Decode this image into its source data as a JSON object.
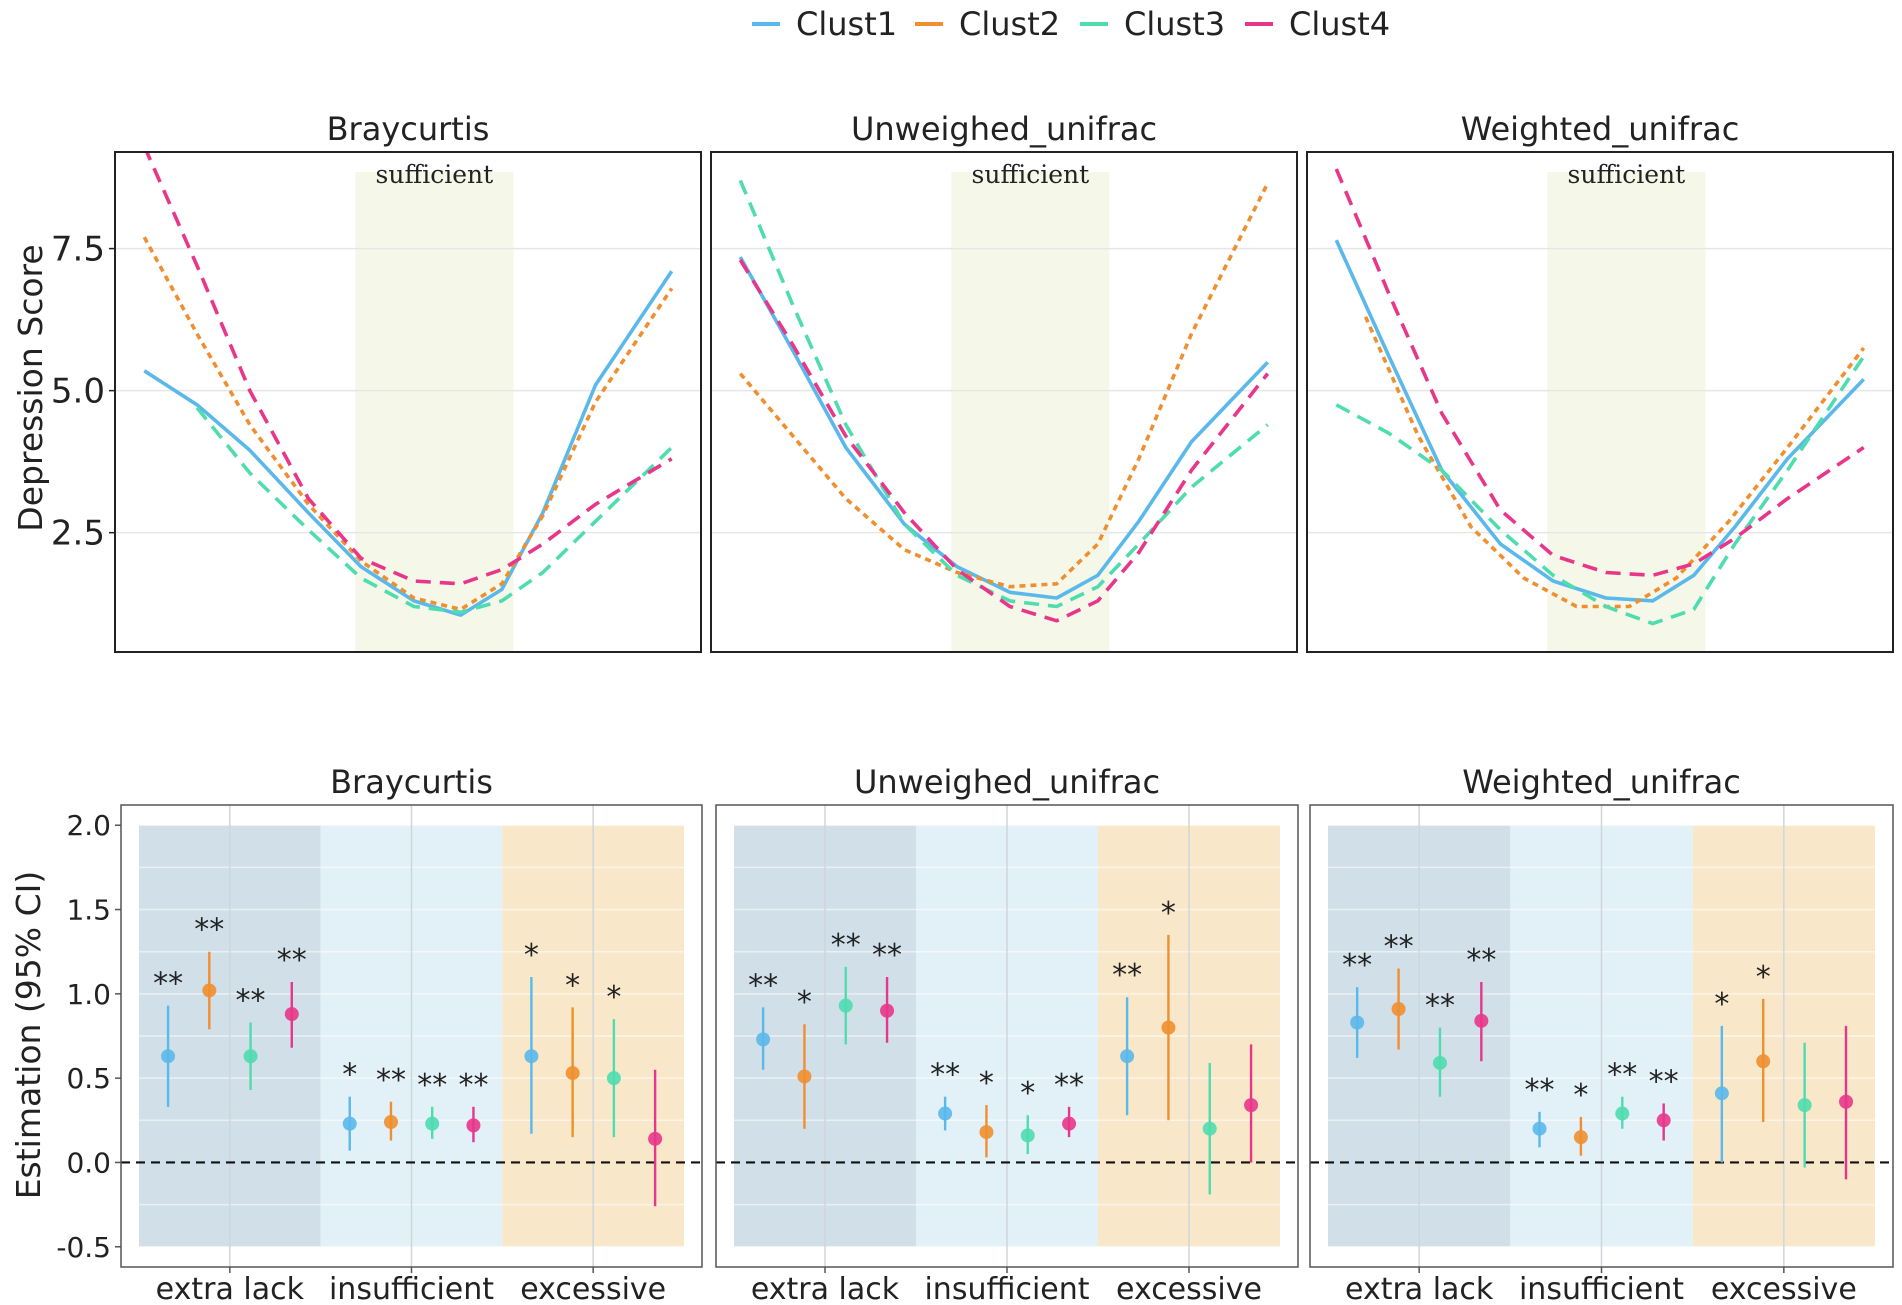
{
  "legend": {
    "items": [
      {
        "name": "Clust1",
        "color": "#5bb8ea",
        "dash": "solid"
      },
      {
        "name": "Clust2",
        "color": "#ef8f2f",
        "dash": "dot"
      },
      {
        "name": "Clust3",
        "color": "#4fdcae",
        "dash": "dash"
      },
      {
        "name": "Clust4",
        "color": "#e8368a",
        "dash": "dash"
      }
    ]
  },
  "top_row": {
    "ylabel": "Depression Score",
    "band_label": "sufficient",
    "band_color": "#f5f8e8"
  },
  "bottom_row": {
    "ylabel": "Estimation (95% CI)",
    "group_colors": [
      "#d0dfe8",
      "#e2f0f8",
      "#f8e8c9"
    ]
  },
  "chart_data": [
    {
      "type": "line",
      "title": "Braycurtis",
      "xlim": [
        0,
        1
      ],
      "ylim": [
        0.4,
        9.2
      ],
      "yticks": [
        2.5,
        5.0,
        7.5
      ],
      "band": [
        0.41,
        0.68
      ],
      "band_label": "sufficient",
      "ylabel": "Depression Score",
      "series": [
        {
          "name": "Clust1",
          "points": [
            [
              0.05,
              5.35
            ],
            [
              0.14,
              4.75
            ],
            [
              0.23,
              3.95
            ],
            [
              0.33,
              2.85
            ],
            [
              0.42,
              1.9
            ],
            [
              0.51,
              1.3
            ],
            [
              0.59,
              1.05
            ],
            [
              0.66,
              1.5
            ],
            [
              0.73,
              2.85
            ],
            [
              0.82,
              5.1
            ],
            [
              0.95,
              7.1
            ]
          ]
        },
        {
          "name": "Clust2",
          "points": [
            [
              0.05,
              7.7
            ],
            [
              0.14,
              6.0
            ],
            [
              0.23,
              4.4
            ],
            [
              0.33,
              3.0
            ],
            [
              0.42,
              2.0
            ],
            [
              0.51,
              1.35
            ],
            [
              0.59,
              1.15
            ],
            [
              0.66,
              1.6
            ],
            [
              0.73,
              2.8
            ],
            [
              0.82,
              4.8
            ],
            [
              0.95,
              6.8
            ]
          ]
        },
        {
          "name": "Clust3",
          "points": [
            [
              0.14,
              4.7
            ],
            [
              0.23,
              3.55
            ],
            [
              0.33,
              2.55
            ],
            [
              0.42,
              1.7
            ],
            [
              0.51,
              1.2
            ],
            [
              0.59,
              1.1
            ],
            [
              0.66,
              1.3
            ],
            [
              0.73,
              1.8
            ],
            [
              0.82,
              2.7
            ],
            [
              0.95,
              4.0
            ]
          ]
        },
        {
          "name": "Clust4",
          "points": [
            [
              0.05,
              9.3
            ],
            [
              0.14,
              7.2
            ],
            [
              0.23,
              5.0
            ],
            [
              0.33,
              3.1
            ],
            [
              0.42,
              2.05
            ],
            [
              0.51,
              1.65
            ],
            [
              0.59,
              1.6
            ],
            [
              0.66,
              1.85
            ],
            [
              0.73,
              2.3
            ],
            [
              0.82,
              3.0
            ],
            [
              0.95,
              3.8
            ]
          ]
        }
      ]
    },
    {
      "type": "line",
      "title": "Unweighed_unifrac",
      "xlim": [
        0,
        1
      ],
      "ylim": [
        0.4,
        9.2
      ],
      "yticks": [
        2.5,
        5.0,
        7.5
      ],
      "band": [
        0.41,
        0.68
      ],
      "band_label": "sufficient",
      "series": [
        {
          "name": "Clust1",
          "points": [
            [
              0.05,
              7.35
            ],
            [
              0.14,
              5.7
            ],
            [
              0.23,
              4.0
            ],
            [
              0.33,
              2.65
            ],
            [
              0.42,
              1.9
            ],
            [
              0.51,
              1.45
            ],
            [
              0.59,
              1.35
            ],
            [
              0.66,
              1.75
            ],
            [
              0.73,
              2.7
            ],
            [
              0.82,
              4.1
            ],
            [
              0.95,
              5.5
            ]
          ]
        },
        {
          "name": "Clust2",
          "points": [
            [
              0.05,
              5.3
            ],
            [
              0.14,
              4.2
            ],
            [
              0.23,
              3.1
            ],
            [
              0.33,
              2.2
            ],
            [
              0.42,
              1.8
            ],
            [
              0.51,
              1.55
            ],
            [
              0.59,
              1.6
            ],
            [
              0.66,
              2.3
            ],
            [
              0.73,
              3.8
            ],
            [
              0.82,
              6.0
            ],
            [
              0.95,
              8.65
            ]
          ]
        },
        {
          "name": "Clust3",
          "points": [
            [
              0.05,
              8.7
            ],
            [
              0.14,
              6.5
            ],
            [
              0.23,
              4.4
            ],
            [
              0.33,
              2.65
            ],
            [
              0.42,
              1.75
            ],
            [
              0.51,
              1.3
            ],
            [
              0.59,
              1.2
            ],
            [
              0.66,
              1.55
            ],
            [
              0.73,
              2.3
            ],
            [
              0.82,
              3.3
            ],
            [
              0.95,
              4.4
            ]
          ]
        },
        {
          "name": "Clust4",
          "points": [
            [
              0.05,
              7.3
            ],
            [
              0.14,
              5.8
            ],
            [
              0.23,
              4.2
            ],
            [
              0.33,
              2.85
            ],
            [
              0.42,
              1.85
            ],
            [
              0.51,
              1.2
            ],
            [
              0.59,
              0.95
            ],
            [
              0.66,
              1.3
            ],
            [
              0.73,
              2.15
            ],
            [
              0.82,
              3.6
            ],
            [
              0.95,
              5.3
            ]
          ]
        }
      ]
    },
    {
      "type": "line",
      "title": "Weighted_unifrac",
      "xlim": [
        0,
        1
      ],
      "ylim": [
        0.4,
        9.2
      ],
      "yticks": [
        2.5,
        5.0,
        7.5
      ],
      "band": [
        0.41,
        0.68
      ],
      "band_label": "sufficient",
      "series": [
        {
          "name": "Clust1",
          "points": [
            [
              0.05,
              7.65
            ],
            [
              0.14,
              5.6
            ],
            [
              0.23,
              3.6
            ],
            [
              0.33,
              2.3
            ],
            [
              0.42,
              1.65
            ],
            [
              0.51,
              1.35
            ],
            [
              0.59,
              1.3
            ],
            [
              0.66,
              1.75
            ],
            [
              0.73,
              2.6
            ],
            [
              0.82,
              3.8
            ],
            [
              0.95,
              5.2
            ]
          ]
        },
        {
          "name": "Clust2",
          "points": [
            [
              0.1,
              6.3
            ],
            [
              0.19,
              4.2
            ],
            [
              0.28,
              2.6
            ],
            [
              0.37,
              1.7
            ],
            [
              0.46,
              1.2
            ],
            [
              0.55,
              1.2
            ],
            [
              0.63,
              1.7
            ],
            [
              0.72,
              2.7
            ],
            [
              0.82,
              4.0
            ],
            [
              0.95,
              5.75
            ]
          ]
        },
        {
          "name": "Clust3",
          "points": [
            [
              0.05,
              4.75
            ],
            [
              0.14,
              4.25
            ],
            [
              0.23,
              3.6
            ],
            [
              0.33,
              2.55
            ],
            [
              0.42,
              1.75
            ],
            [
              0.51,
              1.2
            ],
            [
              0.59,
              0.9
            ],
            [
              0.66,
              1.15
            ],
            [
              0.73,
              2.3
            ],
            [
              0.82,
              3.6
            ],
            [
              0.95,
              5.6
            ]
          ]
        },
        {
          "name": "Clust4",
          "points": [
            [
              0.05,
              8.9
            ],
            [
              0.14,
              6.7
            ],
            [
              0.23,
              4.6
            ],
            [
              0.33,
              2.9
            ],
            [
              0.42,
              2.1
            ],
            [
              0.51,
              1.8
            ],
            [
              0.59,
              1.75
            ],
            [
              0.66,
              1.95
            ],
            [
              0.73,
              2.4
            ],
            [
              0.82,
              3.1
            ],
            [
              0.95,
              4.0
            ]
          ]
        }
      ]
    },
    {
      "type": "scatter",
      "subtype": "point-range",
      "title": "Braycurtis",
      "ylabel": "Estimation (95% CI)",
      "ylim": [
        -0.62,
        2.12
      ],
      "yticks": [
        2.0,
        1.5,
        1.0,
        0.5,
        0.0,
        -0.5
      ],
      "ytick_labels": [
        "2.0",
        "1.5",
        "1.0",
        "0.5",
        "0.0",
        "-0.5"
      ],
      "reference_line": 0,
      "groups": [
        "extra lack",
        "insufficient",
        "excessive"
      ],
      "points": [
        {
          "group": 0,
          "cluster": "Clust1",
          "est": 0.63,
          "lo": 0.33,
          "hi": 0.93,
          "sig": "**"
        },
        {
          "group": 0,
          "cluster": "Clust2",
          "est": 1.02,
          "lo": 0.79,
          "hi": 1.25,
          "sig": "**"
        },
        {
          "group": 0,
          "cluster": "Clust3",
          "est": 0.63,
          "lo": 0.43,
          "hi": 0.83,
          "sig": "**"
        },
        {
          "group": 0,
          "cluster": "Clust4",
          "est": 0.88,
          "lo": 0.68,
          "hi": 1.07,
          "sig": "**"
        },
        {
          "group": 1,
          "cluster": "Clust1",
          "est": 0.23,
          "lo": 0.07,
          "hi": 0.39,
          "sig": "*"
        },
        {
          "group": 1,
          "cluster": "Clust2",
          "est": 0.24,
          "lo": 0.13,
          "hi": 0.36,
          "sig": "**"
        },
        {
          "group": 1,
          "cluster": "Clust3",
          "est": 0.23,
          "lo": 0.14,
          "hi": 0.33,
          "sig": "**"
        },
        {
          "group": 1,
          "cluster": "Clust4",
          "est": 0.22,
          "lo": 0.12,
          "hi": 0.33,
          "sig": "**"
        },
        {
          "group": 2,
          "cluster": "Clust1",
          "est": 0.63,
          "lo": 0.17,
          "hi": 1.1,
          "sig": "*"
        },
        {
          "group": 2,
          "cluster": "Clust2",
          "est": 0.53,
          "lo": 0.15,
          "hi": 0.92,
          "sig": "*"
        },
        {
          "group": 2,
          "cluster": "Clust3",
          "est": 0.5,
          "lo": 0.15,
          "hi": 0.85,
          "sig": "*"
        },
        {
          "group": 2,
          "cluster": "Clust4",
          "est": 0.14,
          "lo": -0.26,
          "hi": 0.55,
          "sig": ""
        }
      ]
    },
    {
      "type": "scatter",
      "subtype": "point-range",
      "title": "Unweighed_unifrac",
      "ylim": [
        -0.62,
        2.12
      ],
      "reference_line": 0,
      "groups": [
        "extra lack",
        "insufficient",
        "excessive"
      ],
      "points": [
        {
          "group": 0,
          "cluster": "Clust1",
          "est": 0.73,
          "lo": 0.55,
          "hi": 0.92,
          "sig": "**"
        },
        {
          "group": 0,
          "cluster": "Clust2",
          "est": 0.51,
          "lo": 0.2,
          "hi": 0.82,
          "sig": "*"
        },
        {
          "group": 0,
          "cluster": "Clust3",
          "est": 0.93,
          "lo": 0.7,
          "hi": 1.16,
          "sig": "**"
        },
        {
          "group": 0,
          "cluster": "Clust4",
          "est": 0.9,
          "lo": 0.71,
          "hi": 1.1,
          "sig": "**"
        },
        {
          "group": 1,
          "cluster": "Clust1",
          "est": 0.29,
          "lo": 0.19,
          "hi": 0.39,
          "sig": "**"
        },
        {
          "group": 1,
          "cluster": "Clust2",
          "est": 0.18,
          "lo": 0.03,
          "hi": 0.34,
          "sig": "*"
        },
        {
          "group": 1,
          "cluster": "Clust3",
          "est": 0.16,
          "lo": 0.05,
          "hi": 0.28,
          "sig": "*"
        },
        {
          "group": 1,
          "cluster": "Clust4",
          "est": 0.23,
          "lo": 0.15,
          "hi": 0.33,
          "sig": "**"
        },
        {
          "group": 2,
          "cluster": "Clust1",
          "est": 0.63,
          "lo": 0.28,
          "hi": 0.98,
          "sig": "**"
        },
        {
          "group": 2,
          "cluster": "Clust2",
          "est": 0.8,
          "lo": 0.25,
          "hi": 1.35,
          "sig": "*"
        },
        {
          "group": 2,
          "cluster": "Clust3",
          "est": 0.2,
          "lo": -0.19,
          "hi": 0.59,
          "sig": ""
        },
        {
          "group": 2,
          "cluster": "Clust4",
          "est": 0.34,
          "lo": 0.0,
          "hi": 0.7,
          "sig": ""
        }
      ]
    },
    {
      "type": "scatter",
      "subtype": "point-range",
      "title": "Weighted_unifrac",
      "ylim": [
        -0.62,
        2.12
      ],
      "reference_line": 0,
      "groups": [
        "extra lack",
        "insufficient",
        "excessive"
      ],
      "points": [
        {
          "group": 0,
          "cluster": "Clust1",
          "est": 0.83,
          "lo": 0.62,
          "hi": 1.04,
          "sig": "**"
        },
        {
          "group": 0,
          "cluster": "Clust2",
          "est": 0.91,
          "lo": 0.67,
          "hi": 1.15,
          "sig": "**"
        },
        {
          "group": 0,
          "cluster": "Clust3",
          "est": 0.59,
          "lo": 0.39,
          "hi": 0.8,
          "sig": "**"
        },
        {
          "group": 0,
          "cluster": "Clust4",
          "est": 0.84,
          "lo": 0.6,
          "hi": 1.07,
          "sig": "**"
        },
        {
          "group": 1,
          "cluster": "Clust1",
          "est": 0.2,
          "lo": 0.09,
          "hi": 0.3,
          "sig": "**"
        },
        {
          "group": 1,
          "cluster": "Clust2",
          "est": 0.15,
          "lo": 0.04,
          "hi": 0.27,
          "sig": "*"
        },
        {
          "group": 1,
          "cluster": "Clust3",
          "est": 0.29,
          "lo": 0.2,
          "hi": 0.39,
          "sig": "**"
        },
        {
          "group": 1,
          "cluster": "Clust4",
          "est": 0.25,
          "lo": 0.13,
          "hi": 0.35,
          "sig": "**"
        },
        {
          "group": 2,
          "cluster": "Clust1",
          "est": 0.41,
          "lo": 0.0,
          "hi": 0.81,
          "sig": "*"
        },
        {
          "group": 2,
          "cluster": "Clust2",
          "est": 0.6,
          "lo": 0.24,
          "hi": 0.97,
          "sig": "*"
        },
        {
          "group": 2,
          "cluster": "Clust3",
          "est": 0.34,
          "lo": -0.03,
          "hi": 0.71,
          "sig": ""
        },
        {
          "group": 2,
          "cluster": "Clust4",
          "est": 0.36,
          "lo": -0.1,
          "hi": 0.81,
          "sig": ""
        }
      ]
    }
  ]
}
